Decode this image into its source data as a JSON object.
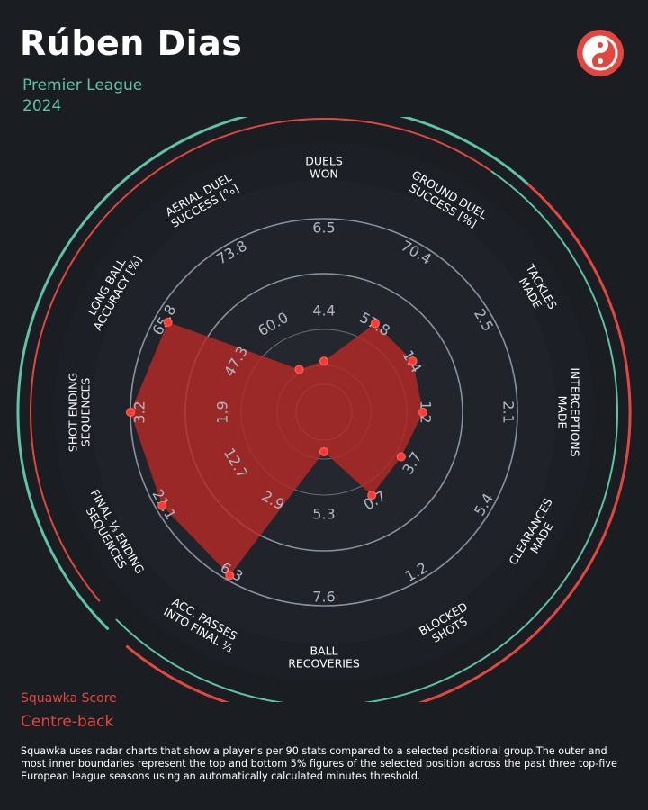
{
  "header": {
    "player_name": "Rúben Dias",
    "league": "Premier League",
    "season": "2024"
  },
  "footer": {
    "score_label": "Squawka Score",
    "position": "Centre-back",
    "note": "Squawka uses radar charts that show a player’s per 90 stats compared to a selected positional group.The outer and most inner boundaries represent the top and bottom 5% figures of the selected position across the past three top-five European league seasons using an automatically calculated minutes threshold."
  },
  "colors": {
    "background": "#1a1d22",
    "accent_green": "#5fc3a8",
    "accent_red": "#e2473f",
    "polygon_fill": "#b52a26",
    "ring": "#8d9aa9"
  },
  "logo_icon": "squawka-logo-icon",
  "chart_data": {
    "type": "radar",
    "metrics": [
      {
        "label": [
          "DUELS",
          "WON"
        ],
        "ticks": [
          "4.4",
          "6.5"
        ],
        "value": 0.14
      },
      {
        "label": [
          "GROUND DUEL",
          "SUCCESS [%]"
        ],
        "ticks": [
          "57.8",
          "70.4"
        ],
        "value": 0.45
      },
      {
        "label": [
          "TACKLES",
          "MADE"
        ],
        "ticks": [
          "1.4",
          "2.5"
        ],
        "value": 0.45
      },
      {
        "label": [
          "INTERCEPTIONS",
          "MADE"
        ],
        "ticks": [
          "1.2",
          "2.1"
        ],
        "value": 0.43
      },
      {
        "label": [
          "CLEARANCES",
          "MADE"
        ],
        "ticks": [
          "3.7",
          "5.4"
        ],
        "value": 0.37
      },
      {
        "label": [
          "BLOCKED",
          "SHOTS"
        ],
        "ticks": [
          "0.7",
          "1.2"
        ],
        "value": 0.41
      },
      {
        "label": [
          "BALL",
          "RECOVERIES"
        ],
        "ticks": [
          "5.3",
          "7.6"
        ],
        "value": 0.07
      },
      {
        "label": [
          "ACC. PASSES",
          "INTO FINAL ⅓"
        ],
        "ticks": [
          "2.9",
          "6.3"
        ],
        "value": 0.97
      },
      {
        "label": [
          "FINAL ⅓ ENDING",
          "SEQUENCES"
        ],
        "ticks": [
          "12.7",
          "21.1"
        ],
        "value": 0.96
      },
      {
        "label": [
          "SHOT ENDING",
          "SEQUENCES"
        ],
        "ticks": [
          "1.9",
          "3.2"
        ],
        "value": 1.0
      },
      {
        "label": [
          "LONG BALL",
          "ACCURACY [%]"
        ],
        "ticks": [
          "47.3",
          "65.8"
        ],
        "value": 0.92
      },
      {
        "label": [
          "AERIAL DUEL",
          "SUCCESS [%]"
        ],
        "ticks": [
          "60.0",
          "73.8"
        ],
        "value": 0.13
      }
    ]
  }
}
